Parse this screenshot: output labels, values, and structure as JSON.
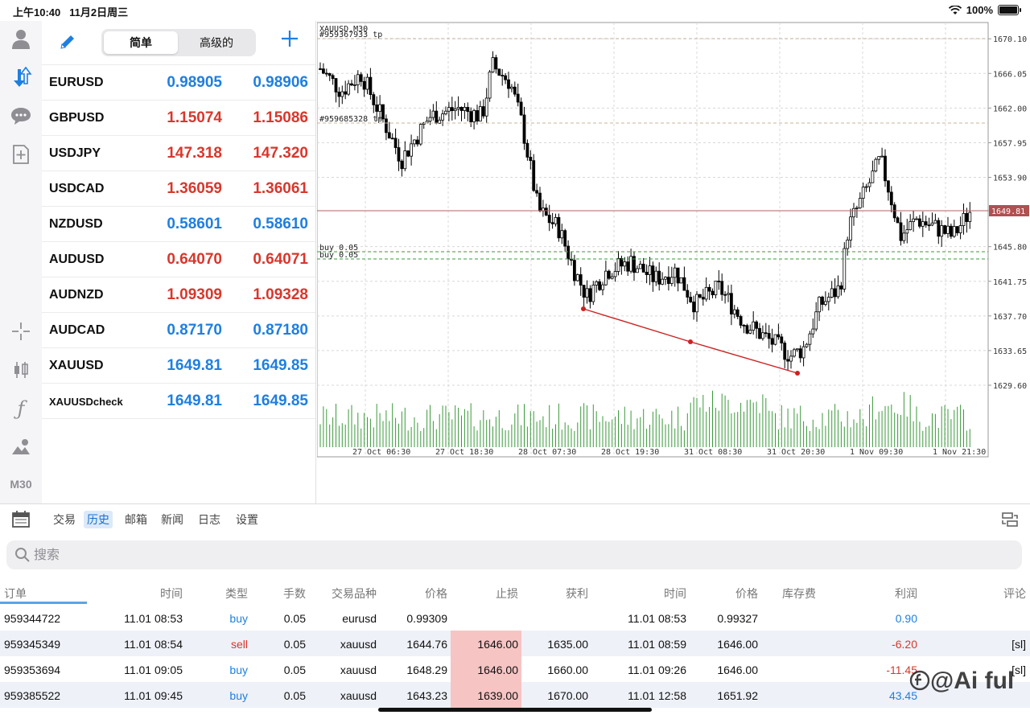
{
  "status_bar": {
    "time": "上午10:40",
    "date": "11月2日周三",
    "battery": "100%"
  },
  "left_toolbar": {
    "timeframe": "M30"
  },
  "quotes": {
    "segment": [
      "简单",
      "高级的"
    ],
    "rows": [
      {
        "symbol": "EURUSD",
        "bid": "0.98905",
        "ask": "0.98906",
        "color": "blue"
      },
      {
        "symbol": "GBPUSD",
        "bid": "1.15074",
        "ask": "1.15086",
        "color": "red"
      },
      {
        "symbol": "USDJPY",
        "bid": "147.318",
        "ask": "147.320",
        "color": "red"
      },
      {
        "symbol": "USDCAD",
        "bid": "1.36059",
        "ask": "1.36061",
        "color": "red"
      },
      {
        "symbol": "NZDUSD",
        "bid": "0.58601",
        "ask": "0.58610",
        "color": "blue"
      },
      {
        "symbol": "AUDUSD",
        "bid": "0.64070",
        "ask": "0.64071",
        "color": "red"
      },
      {
        "symbol": "AUDNZD",
        "bid": "1.09309",
        "ask": "1.09328",
        "color": "red"
      },
      {
        "symbol": "AUDCAD",
        "bid": "0.87170",
        "ask": "0.87180",
        "color": "blue"
      },
      {
        "symbol": "XAUUSD",
        "bid": "1649.81",
        "ask": "1649.85",
        "color": "blue"
      },
      {
        "symbol": "XAUUSDcheck",
        "bid": "1649.81",
        "ask": "1649.85",
        "color": "blue"
      }
    ]
  },
  "chart": {
    "title": "XAUUSD,M30",
    "tp1_label": "#959367933 tp",
    "tp2_label": "#959685328 tp",
    "buy1_label": "buy 0.05",
    "buy2_label": "buy 0.05",
    "current_price": "1649.81",
    "y_ticks": [
      "1670.10",
      "1666.05",
      "1662.00",
      "1657.95",
      "1653.90",
      "1649.81",
      "1645.80",
      "1641.75",
      "1637.70",
      "1633.65",
      "1629.60"
    ],
    "x_ticks": [
      "27 Oct 06:30",
      "27 Oct 18:30",
      "28 Oct 07:30",
      "28 Oct 19:30",
      "31 Oct 08:30",
      "31 Oct 20:30",
      "1 Nov 09:30",
      "1 Nov 21:30"
    ],
    "colors": {
      "bull": "#ffffff",
      "bear": "#000000",
      "volume": "#3a9a3a",
      "trend": "#cc2222",
      "price_line": "#b06060"
    }
  },
  "bottom_tabs": [
    "交易",
    "历史",
    "邮箱",
    "新闻",
    "日志",
    "设置"
  ],
  "search": {
    "placeholder": "搜索"
  },
  "history": {
    "headers": [
      "订单",
      "时间",
      "类型",
      "手数",
      "交易品种",
      "价格",
      "止损",
      "获利",
      "时间",
      "价格",
      "库存费",
      "利润",
      "评论"
    ],
    "rows": [
      {
        "order": "959344722",
        "open_time": "11.01 08:53",
        "type": "buy",
        "lots": "0.05",
        "symbol": "eurusd",
        "open_price": "0.99309",
        "sl": "",
        "tp": "",
        "close_time": "11.01 08:53",
        "close_price": "0.99327",
        "swap": "",
        "profit": "0.90",
        "comment": ""
      },
      {
        "order": "959345349",
        "open_time": "11.01 08:54",
        "type": "sell",
        "lots": "0.05",
        "symbol": "xauusd",
        "open_price": "1644.76",
        "sl": "1646.00",
        "tp": "1635.00",
        "close_time": "11.01 08:59",
        "close_price": "1646.00",
        "swap": "",
        "profit": "-6.20",
        "comment": "[sl]"
      },
      {
        "order": "959353694",
        "open_time": "11.01 09:05",
        "type": "buy",
        "lots": "0.05",
        "symbol": "xauusd",
        "open_price": "1648.29",
        "sl": "1646.00",
        "tp": "1660.00",
        "close_time": "11.01 09:26",
        "close_price": "1646.00",
        "swap": "",
        "profit": "-11.45",
        "comment": "[sl]"
      },
      {
        "order": "959385522",
        "open_time": "11.01 09:45",
        "type": "buy",
        "lots": "0.05",
        "symbol": "xauusd",
        "open_price": "1643.23",
        "sl": "1639.00",
        "tp": "1670.00",
        "close_time": "11.01 12:58",
        "close_price": "1651.92",
        "swap": "",
        "profit": "43.45",
        "comment": ""
      }
    ]
  },
  "watermark": "@Ai ful"
}
